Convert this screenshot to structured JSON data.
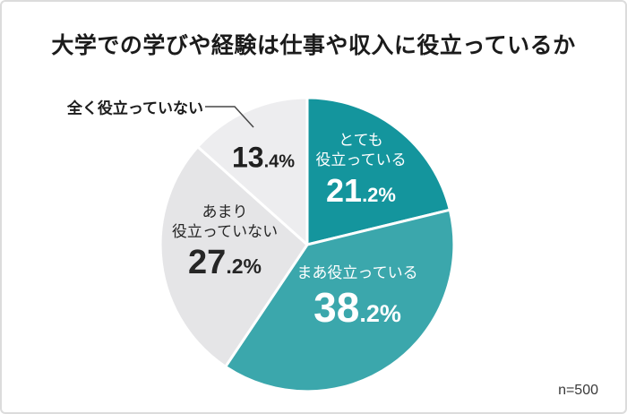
{
  "page": {
    "title": "大学での学びや経験は仕事や収入に役立っているか"
  },
  "chart_data": {
    "type": "pie",
    "title": "大学での学びや経験は仕事や収入に役立っているか",
    "n_label": "n=500",
    "start_angle_deg": 0,
    "direction": "clockwise",
    "legend_position": "labels-inside-slices",
    "callout_label": "全く役立っていない",
    "slices": [
      {
        "label": "とても役立っている",
        "label_lines": [
          "とても",
          "役立っている"
        ],
        "value": 21.2,
        "display": "21.2%",
        "color": "#14959d",
        "text_color": "#ffffff"
      },
      {
        "label": "まあ役立っている",
        "label_lines": [
          "まあ役立っている"
        ],
        "value": 38.2,
        "display": "38.2%",
        "color": "#3ba7ac",
        "text_color": "#ffffff"
      },
      {
        "label": "あまり役立っていない",
        "label_lines": [
          "あまり",
          "役立っていない"
        ],
        "value": 27.2,
        "display": "27.2%",
        "color": "#e5e5e7",
        "text_color": "#262626"
      },
      {
        "label": "全く役立っていない",
        "label_lines": [],
        "value": 13.4,
        "display": "13.4%",
        "color": "#ededef",
        "text_color": "#1f1f1f",
        "callout": true
      }
    ]
  }
}
